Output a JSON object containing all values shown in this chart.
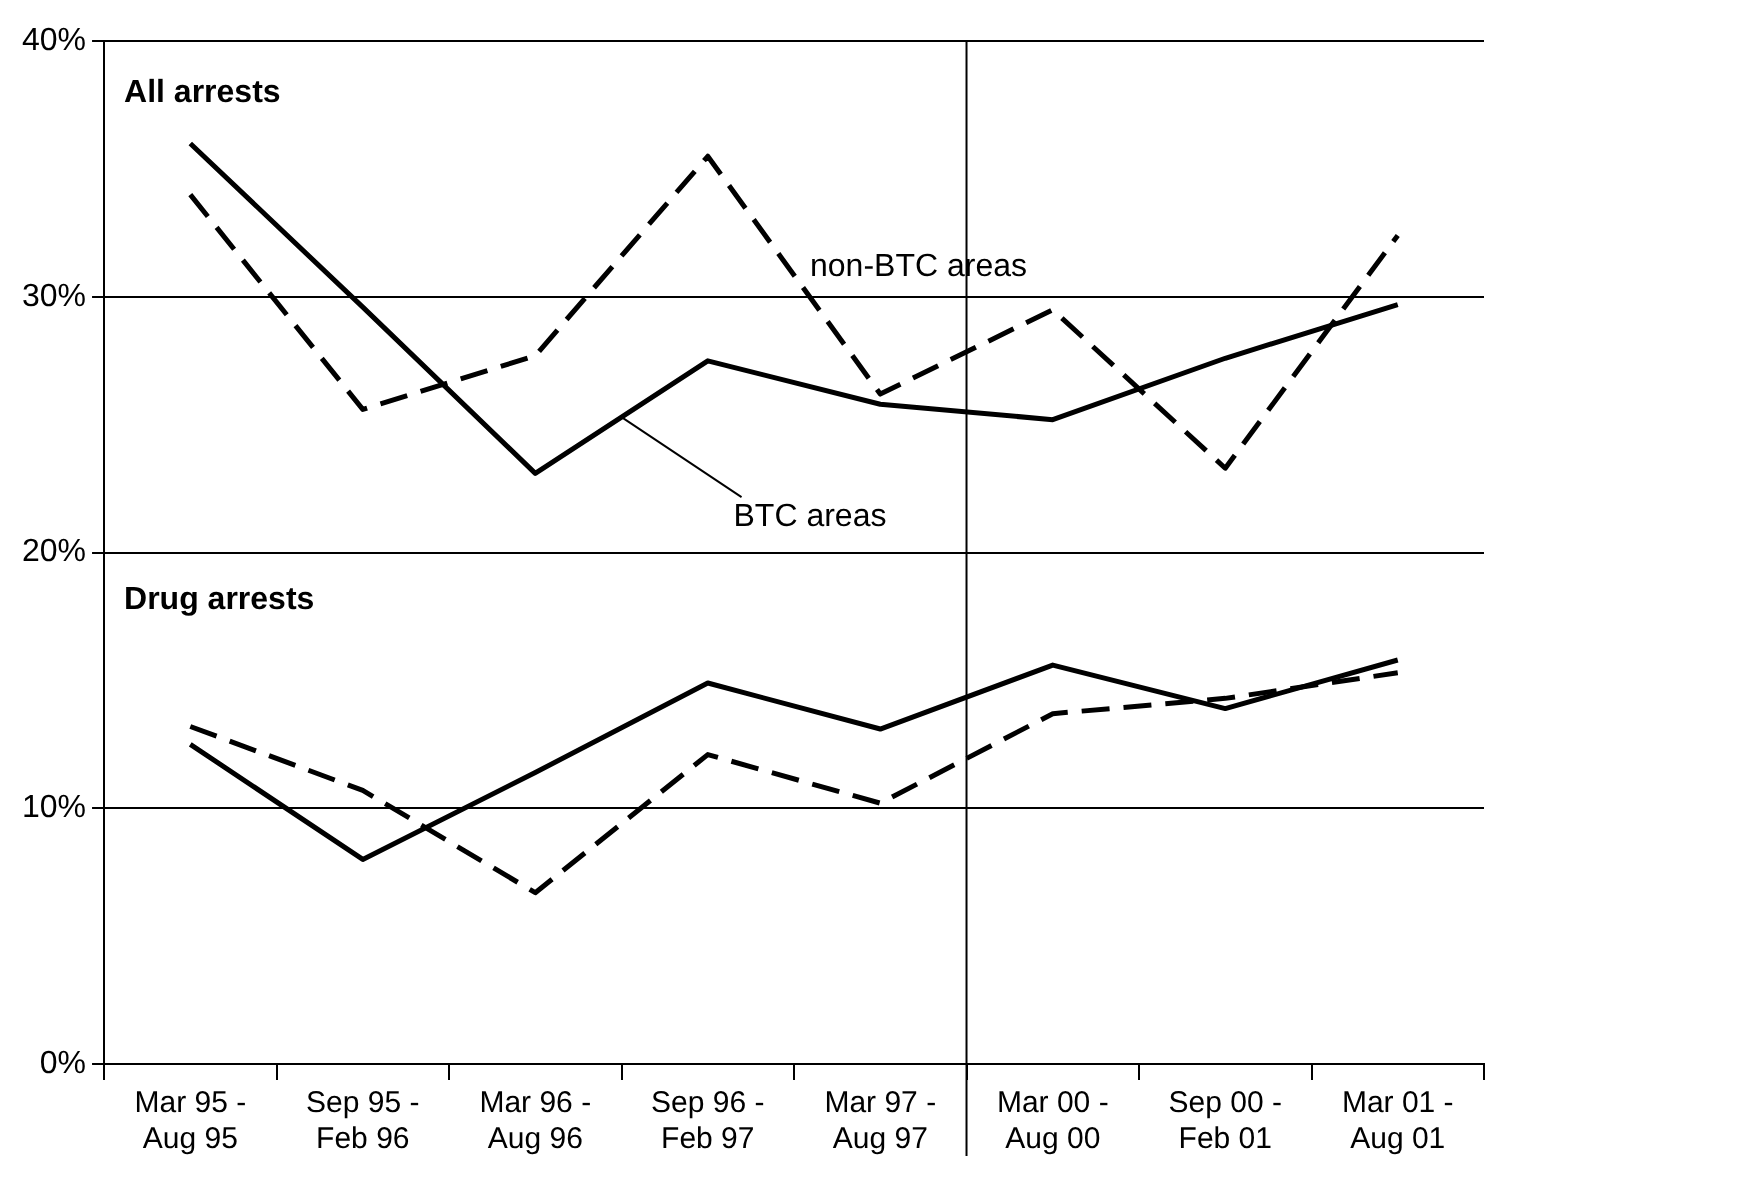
{
  "chart_data": {
    "type": "line",
    "categories": [
      "Mar 95 - Aug 95",
      "Sep 95 - Feb 96",
      "Mar 96 - Aug 96",
      "Sep 96 - Feb 97",
      "Mar 97 - Aug 97",
      "Mar 00 - Aug 00",
      "Sep 00 - Feb 01",
      "Mar 01 - Aug 01"
    ],
    "series": [
      {
        "name": "BTC areas",
        "color": "#000000",
        "line_style": "solid",
        "values": [
          36.0,
          29.6,
          23.1,
          27.5,
          25.8,
          25.2,
          27.6,
          29.7
        ]
      },
      {
        "name": "non-BTC areas",
        "color": "#000000",
        "line_style": "dashed",
        "values": [
          34.0,
          25.6,
          27.7,
          35.5,
          26.2,
          29.5,
          23.3,
          32.4
        ]
      },
      {
        "color": "#000000",
        "line_style": "solid",
        "values": [
          12.5,
          8.0,
          11.4,
          14.9,
          13.1,
          15.6,
          13.9,
          15.8
        ]
      },
      {
        "color": "#000000",
        "line_style": "dashed",
        "values": [
          13.2,
          10.7,
          6.7,
          12.1,
          10.2,
          13.7,
          14.3,
          15.3
        ]
      }
    ],
    "ylim": [
      0,
      40
    ],
    "yticks": [
      {
        "value": 0,
        "label": "0%"
      },
      {
        "value": 10,
        "label": "10%"
      },
      {
        "value": 20,
        "label": "20%"
      },
      {
        "value": 30,
        "label": "30%"
      },
      {
        "value": 40,
        "label": "40%"
      }
    ],
    "grid": "y",
    "legend": false,
    "marker": "none",
    "annotations": [
      "All arrests",
      "Drug arrests"
    ]
  }
}
